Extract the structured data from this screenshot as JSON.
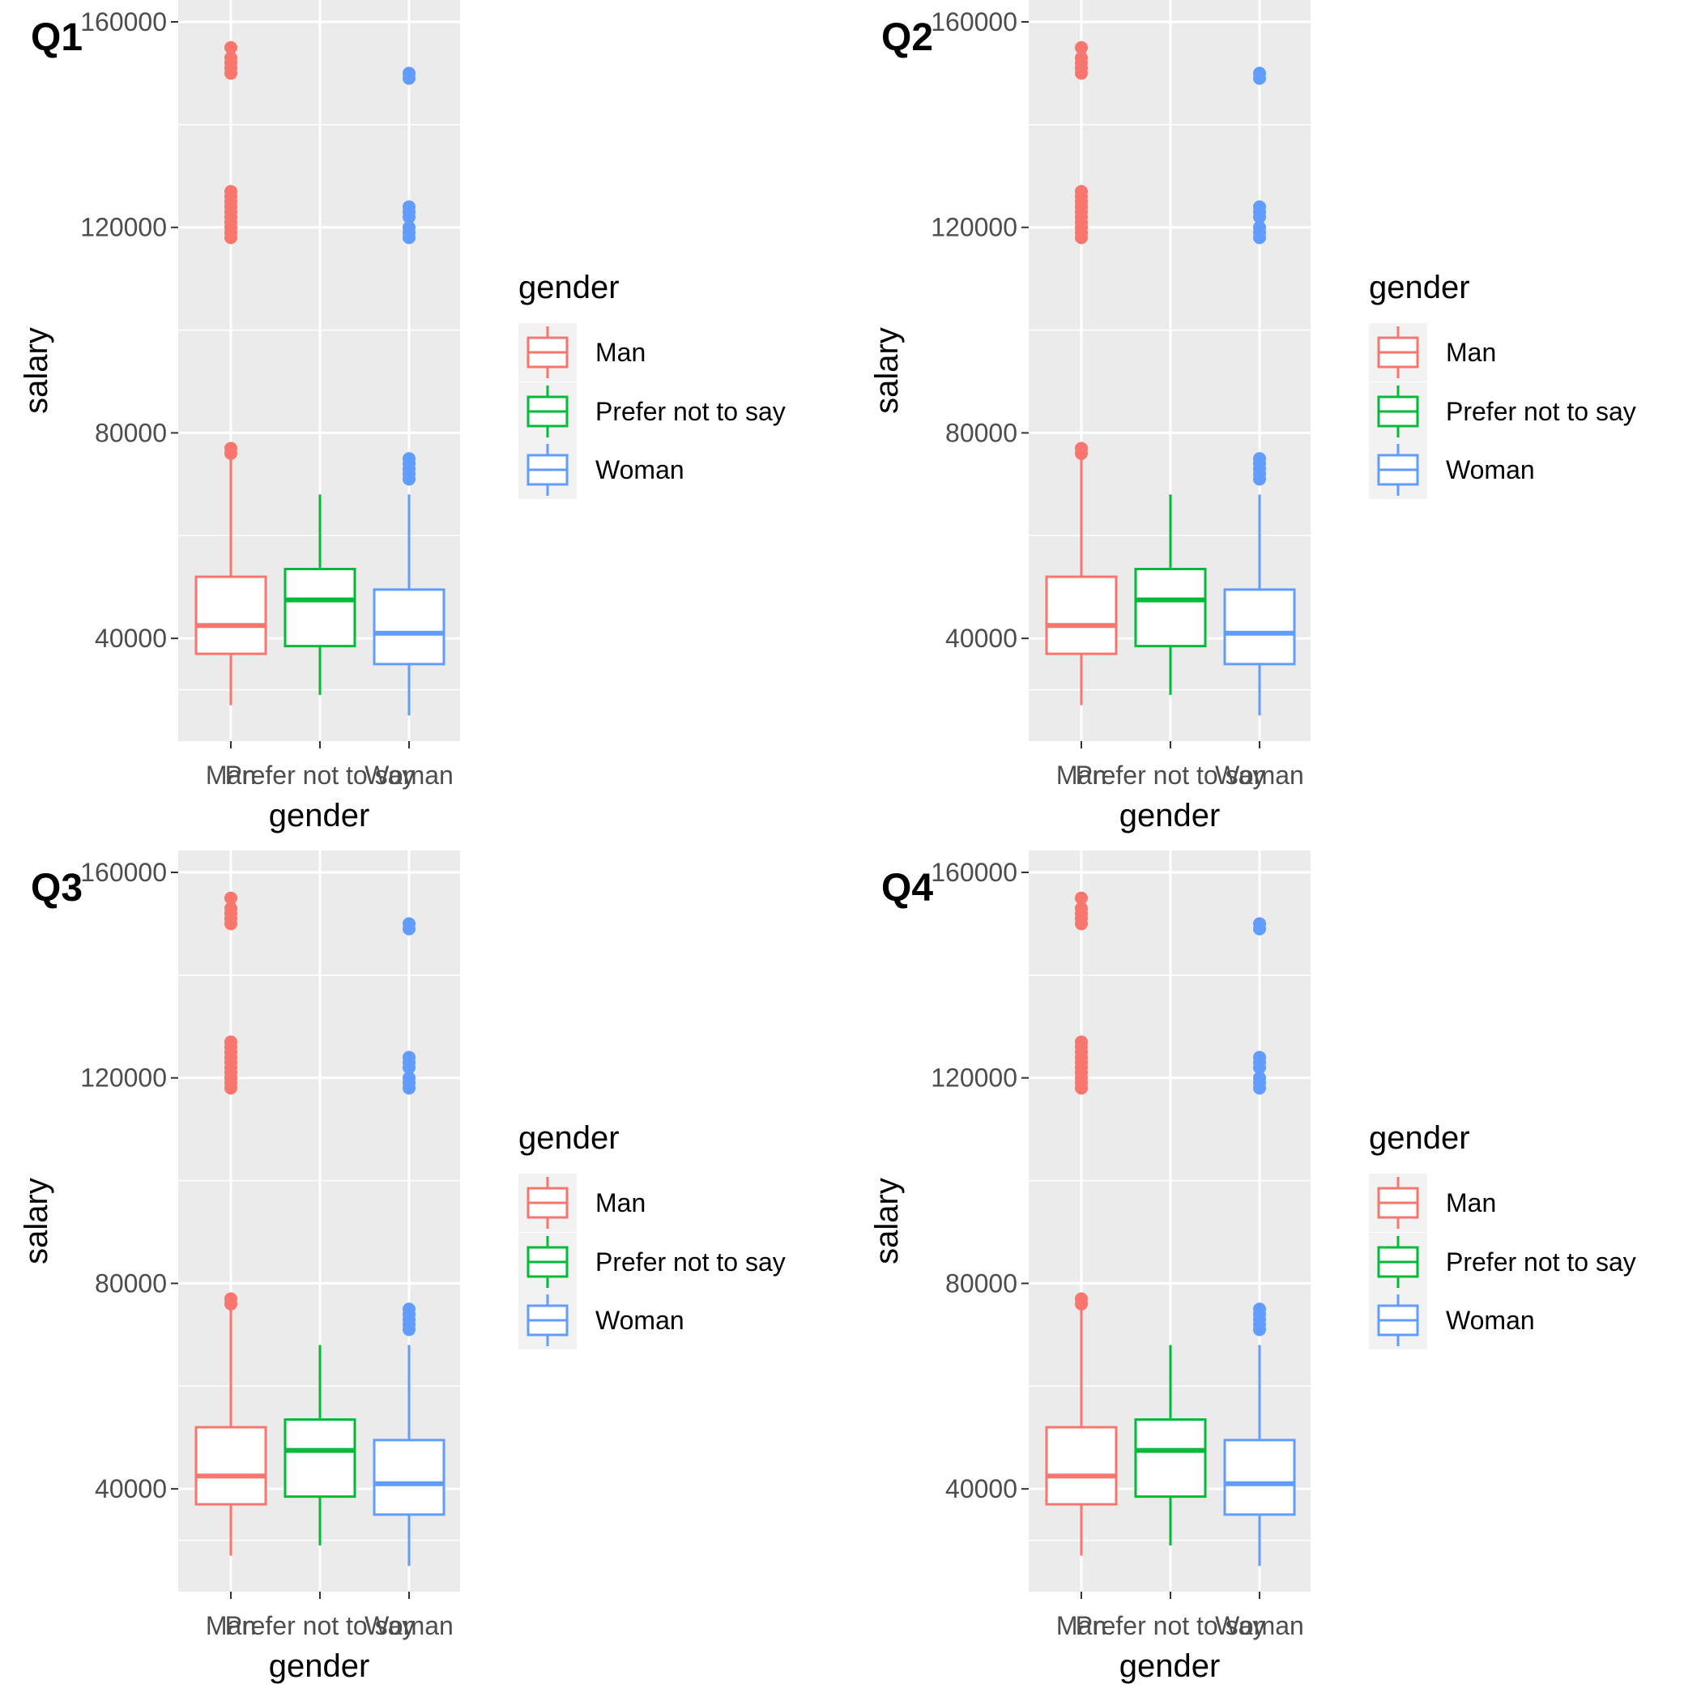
{
  "chart_data": [
    {
      "panel_tag": "Q1",
      "type": "boxplot",
      "xlabel": "gender",
      "ylabel": "salary",
      "ylim": [
        20000,
        160000
      ],
      "y_ticks": [
        40000,
        80000,
        120000,
        160000
      ],
      "y_tick_labels": [
        "40000",
        "80000",
        "120000",
        "160000"
      ],
      "categories": [
        "Man",
        "Prefer not to say",
        "Woman"
      ],
      "legend": {
        "title": "gender",
        "entries": [
          "Man",
          "Prefer not to say",
          "Woman"
        ]
      },
      "series": [
        {
          "name": "Man",
          "color": "#F8766D",
          "whisker_low": 27000,
          "q1": 37000,
          "median": 42500,
          "q3": 52000,
          "whisker_high": 75000,
          "outliers": [
            76000,
            77000,
            118000,
            119000,
            120000,
            121000,
            122000,
            123000,
            124000,
            125000,
            126000,
            127000,
            150000,
            151000,
            152000,
            153000,
            155000
          ]
        },
        {
          "name": "Prefer not to say",
          "color": "#00BA38",
          "whisker_low": 29000,
          "q1": 38500,
          "median": 47500,
          "q3": 53500,
          "whisker_high": 68000,
          "outliers": []
        },
        {
          "name": "Woman",
          "color": "#619CFF",
          "whisker_low": 25000,
          "q1": 35000,
          "median": 41000,
          "q3": 49500,
          "whisker_high": 68000,
          "outliers": [
            71000,
            72000,
            73000,
            74000,
            75000,
            118000,
            119000,
            120000,
            122000,
            123000,
            124000,
            149000,
            150000
          ]
        }
      ]
    },
    {
      "panel_tag": "Q2",
      "type": "boxplot",
      "xlabel": "gender",
      "ylabel": "salary",
      "ylim": [
        20000,
        160000
      ],
      "y_ticks": [
        40000,
        80000,
        120000,
        160000
      ],
      "y_tick_labels": [
        "40000",
        "80000",
        "120000",
        "160000"
      ],
      "categories": [
        "Man",
        "Prefer not to say",
        "Woman"
      ],
      "legend": {
        "title": "gender",
        "entries": [
          "Man",
          "Prefer not to say",
          "Woman"
        ]
      },
      "series": [
        {
          "name": "Man",
          "color": "#F8766D",
          "whisker_low": 27000,
          "q1": 37000,
          "median": 42500,
          "q3": 52000,
          "whisker_high": 75000,
          "outliers": [
            76000,
            77000,
            118000,
            119000,
            120000,
            121000,
            122000,
            123000,
            124000,
            125000,
            126000,
            127000,
            150000,
            151000,
            152000,
            153000,
            155000
          ]
        },
        {
          "name": "Prefer not to say",
          "color": "#00BA38",
          "whisker_low": 29000,
          "q1": 38500,
          "median": 47500,
          "q3": 53500,
          "whisker_high": 68000,
          "outliers": []
        },
        {
          "name": "Woman",
          "color": "#619CFF",
          "whisker_low": 25000,
          "q1": 35000,
          "median": 41000,
          "q3": 49500,
          "whisker_high": 68000,
          "outliers": [
            71000,
            72000,
            73000,
            74000,
            75000,
            118000,
            119000,
            120000,
            122000,
            123000,
            124000,
            149000,
            150000
          ]
        }
      ]
    },
    {
      "panel_tag": "Q3",
      "type": "boxplot",
      "xlabel": "gender",
      "ylabel": "salary",
      "ylim": [
        20000,
        160000
      ],
      "y_ticks": [
        40000,
        80000,
        120000,
        160000
      ],
      "y_tick_labels": [
        "40000",
        "80000",
        "120000",
        "160000"
      ],
      "categories": [
        "Man",
        "Prefer not to say",
        "Woman"
      ],
      "legend": {
        "title": "gender",
        "entries": [
          "Man",
          "Prefer not to say",
          "Woman"
        ]
      },
      "series": [
        {
          "name": "Man",
          "color": "#F8766D",
          "whisker_low": 27000,
          "q1": 37000,
          "median": 42500,
          "q3": 52000,
          "whisker_high": 75000,
          "outliers": [
            76000,
            77000,
            118000,
            119000,
            120000,
            121000,
            122000,
            123000,
            124000,
            125000,
            126000,
            127000,
            150000,
            151000,
            152000,
            153000,
            155000
          ]
        },
        {
          "name": "Prefer not to say",
          "color": "#00BA38",
          "whisker_low": 29000,
          "q1": 38500,
          "median": 47500,
          "q3": 53500,
          "whisker_high": 68000,
          "outliers": []
        },
        {
          "name": "Woman",
          "color": "#619CFF",
          "whisker_low": 25000,
          "q1": 35000,
          "median": 41000,
          "q3": 49500,
          "whisker_high": 68000,
          "outliers": [
            71000,
            72000,
            73000,
            74000,
            75000,
            118000,
            119000,
            120000,
            122000,
            123000,
            124000,
            149000,
            150000
          ]
        }
      ]
    },
    {
      "panel_tag": "Q4",
      "type": "boxplot",
      "xlabel": "gender",
      "ylabel": "salary",
      "ylim": [
        20000,
        160000
      ],
      "y_ticks": [
        40000,
        80000,
        120000,
        160000
      ],
      "y_tick_labels": [
        "40000",
        "80000",
        "120000",
        "160000"
      ],
      "categories": [
        "Man",
        "Prefer not to say",
        "Woman"
      ],
      "legend": {
        "title": "gender",
        "entries": [
          "Man",
          "Prefer not to say",
          "Woman"
        ]
      },
      "series": [
        {
          "name": "Man",
          "color": "#F8766D",
          "whisker_low": 27000,
          "q1": 37000,
          "median": 42500,
          "q3": 52000,
          "whisker_high": 75000,
          "outliers": [
            76000,
            77000,
            118000,
            119000,
            120000,
            121000,
            122000,
            123000,
            124000,
            125000,
            126000,
            127000,
            150000,
            151000,
            152000,
            153000,
            155000
          ]
        },
        {
          "name": "Prefer not to say",
          "color": "#00BA38",
          "whisker_low": 29000,
          "q1": 38500,
          "median": 47500,
          "q3": 53500,
          "whisker_high": 68000,
          "outliers": []
        },
        {
          "name": "Woman",
          "color": "#619CFF",
          "whisker_low": 25000,
          "q1": 35000,
          "median": 41000,
          "q3": 49500,
          "whisker_high": 68000,
          "outliers": [
            71000,
            72000,
            73000,
            74000,
            75000,
            118000,
            119000,
            120000,
            122000,
            123000,
            124000,
            149000,
            150000
          ]
        }
      ]
    }
  ]
}
